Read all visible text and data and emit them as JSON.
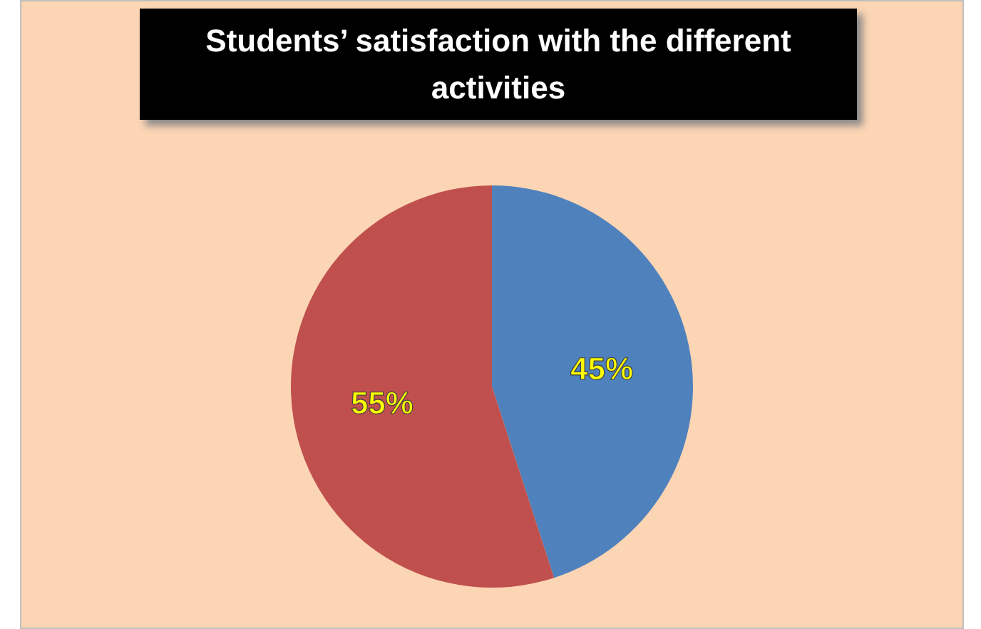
{
  "chart_data": {
    "type": "pie",
    "title": "Students’ satisfaction with the different activities",
    "categories": [
      null,
      null
    ],
    "values": [
      45,
      55
    ],
    "colors": [
      "#4f81bd",
      "#c0504d"
    ],
    "value_labels": [
      "45%",
      "55%"
    ]
  }
}
